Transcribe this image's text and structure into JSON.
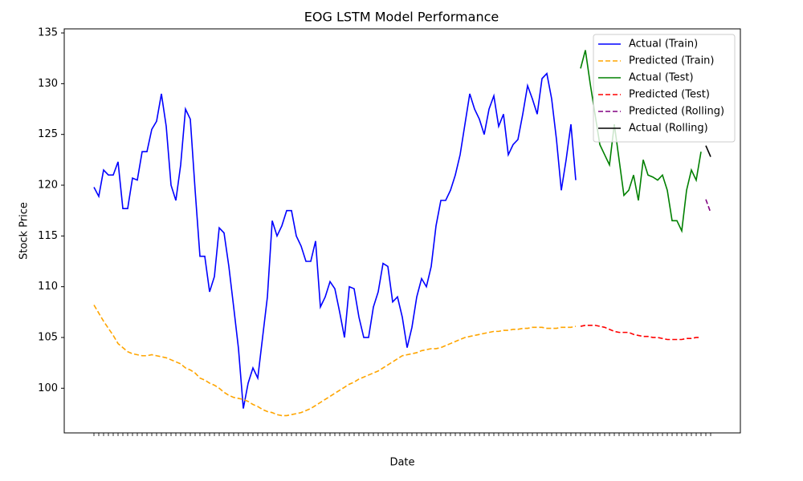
{
  "chart_data": {
    "type": "line",
    "title": "EOG LSTM Model Performance",
    "x_label": "Date",
    "y_label": "Stock Price",
    "ylim": [
      95.6,
      135.4
    ],
    "yticks": [
      100,
      105,
      110,
      115,
      120,
      125,
      130,
      135
    ],
    "legend": "upper right",
    "categories": [
      null,
      null,
      null,
      null,
      null,
      null,
      null,
      null,
      null,
      null,
      null,
      null,
      null,
      null,
      null,
      null,
      null,
      null,
      null,
      null,
      null,
      null,
      null,
      null,
      null,
      null,
      null,
      null,
      null,
      null,
      null,
      null,
      null,
      null,
      null,
      null,
      null,
      null,
      null,
      null,
      null,
      null,
      null,
      null,
      null,
      null,
      null,
      null,
      null,
      null,
      null,
      null,
      null,
      null,
      null,
      null,
      null,
      null,
      null,
      null,
      null,
      null,
      null,
      null,
      null,
      null,
      null,
      null,
      null,
      null,
      null,
      null,
      null,
      null,
      null,
      null,
      null,
      null,
      null,
      null,
      null,
      null,
      null,
      null,
      null,
      null,
      null,
      null,
      null,
      null,
      null,
      null,
      null,
      null,
      null,
      null,
      null,
      null,
      null,
      null,
      null,
      null,
      null,
      null,
      null,
      null,
      null,
      null,
      null,
      null,
      null,
      null,
      null,
      null,
      null,
      null,
      null,
      null,
      null,
      null,
      null,
      null,
      null,
      null,
      null,
      null,
      null,
      null,
      null
    ],
    "series": [
      {
        "name": "Actual (Train)",
        "color": "#0000ff",
        "dashed": false,
        "values": [
          119.8,
          118.9,
          121.5,
          121.0,
          121.0,
          122.3,
          117.7,
          117.7,
          120.7,
          120.5,
          123.3,
          123.3,
          125.5,
          126.3,
          129.0,
          125.8,
          120.0,
          118.5,
          122.0,
          127.5,
          126.5,
          119.5,
          113.0,
          113.0,
          109.5,
          111.0,
          115.8,
          115.3,
          112.0,
          108.0,
          103.9,
          98.0,
          100.5,
          102.0,
          101.0,
          105.0,
          109.0,
          116.5,
          115.0,
          116.0,
          117.5,
          117.5,
          115.0,
          114.0,
          112.5,
          112.5,
          114.5,
          108.0,
          109.0,
          110.5,
          109.8,
          107.5,
          105.0,
          110.0,
          109.8,
          107.0,
          105.0,
          105.0,
          108.0,
          109.5,
          112.3,
          112.0,
          108.5,
          109.0,
          107.0,
          104.0,
          106.0,
          109.0,
          110.8,
          110.0,
          112.0,
          116.0,
          118.5,
          118.5,
          119.5,
          121.0,
          123.0,
          126.0,
          129.0,
          127.5,
          126.5,
          125.0,
          127.5,
          128.8,
          125.8,
          127.0,
          123.0,
          124.0,
          124.5,
          127.0,
          129.8,
          128.5,
          127.0,
          130.5,
          131.0,
          128.5,
          124.5,
          119.5,
          122.5,
          126.0,
          120.5,
          null,
          null,
          null,
          null,
          null,
          null,
          null,
          null,
          null,
          null,
          null,
          null,
          null,
          null,
          null,
          null,
          null,
          null,
          null,
          null,
          null,
          null,
          null,
          null,
          null,
          null,
          null,
          null
        ]
      },
      {
        "name": "Predicted (Train)",
        "color": "#ffa500",
        "dashed": true,
        "values": [
          108.2,
          107.4,
          106.6,
          105.9,
          105.2,
          104.4,
          104.0,
          103.6,
          103.4,
          103.3,
          103.2,
          103.2,
          103.3,
          103.2,
          103.1,
          103.0,
          102.8,
          102.6,
          102.4,
          102.0,
          101.8,
          101.5,
          101.0,
          100.8,
          100.5,
          100.3,
          100.0,
          99.6,
          99.3,
          99.1,
          99.0,
          98.9,
          98.7,
          98.4,
          98.2,
          97.9,
          97.7,
          97.6,
          97.4,
          97.3,
          97.3,
          97.4,
          97.5,
          97.6,
          97.8,
          98.0,
          98.3,
          98.6,
          98.9,
          99.2,
          99.5,
          99.8,
          100.1,
          100.4,
          100.6,
          100.9,
          101.1,
          101.3,
          101.5,
          101.7,
          102.0,
          102.3,
          102.6,
          102.9,
          103.2,
          103.3,
          103.4,
          103.5,
          103.7,
          103.8,
          103.9,
          103.9,
          104.0,
          104.2,
          104.4,
          104.6,
          104.8,
          105.0,
          105.1,
          105.2,
          105.3,
          105.4,
          105.5,
          105.6,
          105.6,
          105.7,
          105.7,
          105.8,
          105.8,
          105.9,
          105.9,
          106.0,
          106.0,
          106.0,
          105.9,
          105.9,
          105.9,
          106.0,
          106.0,
          106.0,
          106.1,
          null,
          null,
          null,
          null,
          null,
          null,
          null,
          null,
          null,
          null,
          null,
          null,
          null,
          null,
          null,
          null,
          null,
          null,
          null,
          null,
          null,
          null,
          null,
          null,
          null,
          null,
          null,
          null
        ]
      },
      {
        "name": "Actual (Test)",
        "color": "#008000",
        "dashed": false,
        "values": [
          null,
          null,
          null,
          null,
          null,
          null,
          null,
          null,
          null,
          null,
          null,
          null,
          null,
          null,
          null,
          null,
          null,
          null,
          null,
          null,
          null,
          null,
          null,
          null,
          null,
          null,
          null,
          null,
          null,
          null,
          null,
          null,
          null,
          null,
          null,
          null,
          null,
          null,
          null,
          null,
          null,
          null,
          null,
          null,
          null,
          null,
          null,
          null,
          null,
          null,
          null,
          null,
          null,
          null,
          null,
          null,
          null,
          null,
          null,
          null,
          null,
          null,
          null,
          null,
          null,
          null,
          null,
          null,
          null,
          null,
          null,
          null,
          null,
          null,
          null,
          null,
          null,
          null,
          null,
          null,
          null,
          null,
          null,
          null,
          null,
          null,
          null,
          null,
          null,
          null,
          null,
          null,
          null,
          null,
          null,
          null,
          null,
          null,
          null,
          null,
          null,
          131.5,
          133.3,
          130.0,
          127.0,
          124.0,
          123.0,
          122.0,
          126.0,
          122.5,
          119.0,
          119.5,
          121.0,
          118.5,
          122.5,
          121.0,
          120.8,
          120.5,
          121.0,
          119.5,
          116.5,
          116.5,
          115.5,
          119.5,
          121.5,
          120.5,
          123.3,
          null,
          null
        ]
      },
      {
        "name": "Predicted (Test)",
        "color": "#ff0000",
        "dashed": true,
        "values": [
          null,
          null,
          null,
          null,
          null,
          null,
          null,
          null,
          null,
          null,
          null,
          null,
          null,
          null,
          null,
          null,
          null,
          null,
          null,
          null,
          null,
          null,
          null,
          null,
          null,
          null,
          null,
          null,
          null,
          null,
          null,
          null,
          null,
          null,
          null,
          null,
          null,
          null,
          null,
          null,
          null,
          null,
          null,
          null,
          null,
          null,
          null,
          null,
          null,
          null,
          null,
          null,
          null,
          null,
          null,
          null,
          null,
          null,
          null,
          null,
          null,
          null,
          null,
          null,
          null,
          null,
          null,
          null,
          null,
          null,
          null,
          null,
          null,
          null,
          null,
          null,
          null,
          null,
          null,
          null,
          null,
          null,
          null,
          null,
          null,
          null,
          null,
          null,
          null,
          null,
          null,
          null,
          null,
          null,
          null,
          null,
          null,
          null,
          null,
          null,
          null,
          106.1,
          106.2,
          106.2,
          106.2,
          106.1,
          106.0,
          105.8,
          105.6,
          105.5,
          105.5,
          105.5,
          105.3,
          105.2,
          105.1,
          105.1,
          105.0,
          105.0,
          104.9,
          104.8,
          104.8,
          104.8,
          104.8,
          104.9,
          104.9,
          105.0,
          105.0,
          null,
          null
        ]
      },
      {
        "name": "Predicted (Rolling)",
        "color": "#800080",
        "dashed": true,
        "values": [
          null,
          null,
          null,
          null,
          null,
          null,
          null,
          null,
          null,
          null,
          null,
          null,
          null,
          null,
          null,
          null,
          null,
          null,
          null,
          null,
          null,
          null,
          null,
          null,
          null,
          null,
          null,
          null,
          null,
          null,
          null,
          null,
          null,
          null,
          null,
          null,
          null,
          null,
          null,
          null,
          null,
          null,
          null,
          null,
          null,
          null,
          null,
          null,
          null,
          null,
          null,
          null,
          null,
          null,
          null,
          null,
          null,
          null,
          null,
          null,
          null,
          null,
          null,
          null,
          null,
          null,
          null,
          null,
          null,
          null,
          null,
          null,
          null,
          null,
          null,
          null,
          null,
          null,
          null,
          null,
          null,
          null,
          null,
          null,
          null,
          null,
          null,
          null,
          null,
          null,
          null,
          null,
          null,
          null,
          null,
          null,
          null,
          null,
          null,
          null,
          null,
          null,
          null,
          null,
          null,
          null,
          null,
          null,
          null,
          null,
          null,
          null,
          null,
          null,
          null,
          null,
          null,
          null,
          null,
          null,
          null,
          null,
          null,
          null,
          null,
          null,
          null,
          118.6,
          117.3
        ]
      },
      {
        "name": "Actual (Rolling)",
        "color": "#000000",
        "dashed": false,
        "values": [
          null,
          null,
          null,
          null,
          null,
          null,
          null,
          null,
          null,
          null,
          null,
          null,
          null,
          null,
          null,
          null,
          null,
          null,
          null,
          null,
          null,
          null,
          null,
          null,
          null,
          null,
          null,
          null,
          null,
          null,
          null,
          null,
          null,
          null,
          null,
          null,
          null,
          null,
          null,
          null,
          null,
          null,
          null,
          null,
          null,
          null,
          null,
          null,
          null,
          null,
          null,
          null,
          null,
          null,
          null,
          null,
          null,
          null,
          null,
          null,
          null,
          null,
          null,
          null,
          null,
          null,
          null,
          null,
          null,
          null,
          null,
          null,
          null,
          null,
          null,
          null,
          null,
          null,
          null,
          null,
          null,
          null,
          null,
          null,
          null,
          null,
          null,
          null,
          null,
          null,
          null,
          null,
          null,
          null,
          null,
          null,
          null,
          null,
          null,
          null,
          null,
          null,
          null,
          null,
          null,
          null,
          null,
          null,
          null,
          null,
          null,
          null,
          null,
          null,
          null,
          null,
          null,
          null,
          null,
          null,
          null,
          null,
          null,
          null,
          null,
          null,
          null,
          123.9,
          122.8
        ]
      }
    ]
  }
}
